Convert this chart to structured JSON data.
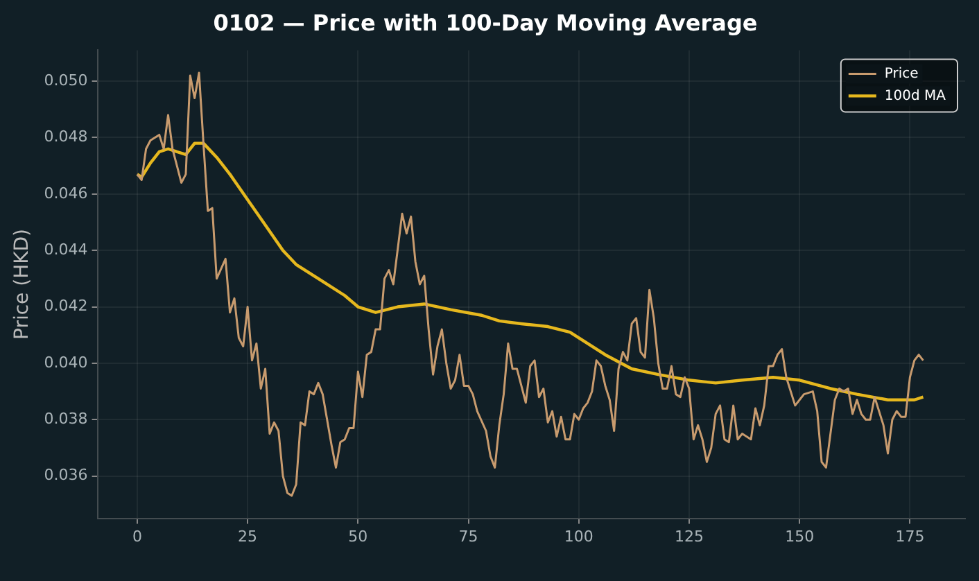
{
  "chart_data": {
    "type": "line",
    "title": "0102 — Price with 100-Day Moving Average",
    "ylabel": "Price (HKD)",
    "xlim": [
      -9,
      187.5
    ],
    "xticks": [
      0,
      25,
      50,
      75,
      100,
      125,
      150,
      175
    ],
    "ylim": [
      0.0345,
      0.0511
    ],
    "yticks": [
      {
        "value": 0.036,
        "label": "0.036"
      },
      {
        "value": 0.038,
        "label": "0.038"
      },
      {
        "value": 0.04,
        "label": "0.040"
      },
      {
        "value": 0.042,
        "label": "0.042"
      },
      {
        "value": 0.044,
        "label": "0.044"
      },
      {
        "value": 0.046,
        "label": "0.046"
      },
      {
        "value": 0.048,
        "label": "0.048"
      },
      {
        "value": 0.05,
        "label": "0.050"
      }
    ],
    "grid": true,
    "legend": "top right",
    "marker": "none",
    "line_style": "solid",
    "series": [
      {
        "name": "Price",
        "color": "#c89b6e",
        "x": [
          0,
          1,
          2,
          3,
          5,
          6,
          7,
          8,
          10,
          11,
          12,
          13,
          14,
          15,
          16,
          17,
          18,
          20,
          21,
          22,
          23,
          24,
          25,
          26,
          27,
          28,
          29,
          30,
          31,
          32,
          33,
          34,
          35,
          36,
          37,
          38,
          39,
          40,
          41,
          42,
          44,
          45,
          46,
          47,
          48,
          49,
          50,
          51,
          52,
          53,
          54,
          55,
          56,
          57,
          58,
          60,
          61,
          62,
          63,
          64,
          65,
          66,
          67,
          68,
          69,
          70,
          71,
          72,
          73,
          74,
          75,
          76,
          77,
          79,
          80,
          81,
          82,
          83,
          84,
          85,
          86,
          87,
          88,
          89,
          90,
          91,
          92,
          93,
          94,
          95,
          96,
          97,
          98,
          99,
          100,
          101,
          102,
          103,
          104,
          105,
          106,
          107,
          108,
          109,
          110,
          111,
          112,
          113,
          114,
          115,
          116,
          117,
          118,
          119,
          120,
          121,
          122,
          123,
          124,
          125,
          126,
          127,
          128,
          129,
          130,
          131,
          132,
          133,
          134,
          135,
          136,
          137,
          139,
          140,
          141,
          142,
          143,
          144,
          145,
          146,
          147,
          149,
          150,
          151,
          153,
          154,
          155,
          156,
          157,
          158,
          159,
          160,
          161,
          162,
          163,
          164,
          165,
          166,
          167,
          168,
          169,
          170,
          171,
          172,
          173,
          174,
          175,
          176,
          177,
          178
        ],
        "values": [
          0.0467,
          0.0465,
          0.0476,
          0.0479,
          0.0481,
          0.0476,
          0.0488,
          0.0476,
          0.0464,
          0.0467,
          0.0502,
          0.0494,
          0.0503,
          0.0478,
          0.0454,
          0.0455,
          0.043,
          0.0437,
          0.0418,
          0.0423,
          0.0409,
          0.0406,
          0.042,
          0.0401,
          0.0407,
          0.0391,
          0.0398,
          0.0375,
          0.0379,
          0.0376,
          0.036,
          0.0354,
          0.0353,
          0.0357,
          0.0379,
          0.0378,
          0.039,
          0.0389,
          0.0393,
          0.0389,
          0.0371,
          0.0363,
          0.0372,
          0.0373,
          0.0377,
          0.0377,
          0.0397,
          0.0388,
          0.0403,
          0.0404,
          0.0412,
          0.0412,
          0.043,
          0.0433,
          0.0428,
          0.0453,
          0.0446,
          0.0452,
          0.0436,
          0.0428,
          0.0431,
          0.0412,
          0.0396,
          0.0406,
          0.0412,
          0.04,
          0.0391,
          0.0394,
          0.0403,
          0.0392,
          0.0392,
          0.0389,
          0.0383,
          0.0376,
          0.0367,
          0.0363,
          0.0378,
          0.0389,
          0.0407,
          0.0398,
          0.0398,
          0.0392,
          0.0386,
          0.0399,
          0.0401,
          0.0388,
          0.0391,
          0.0379,
          0.0383,
          0.0374,
          0.0381,
          0.0373,
          0.0373,
          0.0382,
          0.038,
          0.0384,
          0.0386,
          0.039,
          0.0401,
          0.0399,
          0.0392,
          0.0387,
          0.0376,
          0.0398,
          0.0404,
          0.0401,
          0.0414,
          0.0416,
          0.0404,
          0.0402,
          0.0426,
          0.0416,
          0.04,
          0.0391,
          0.0391,
          0.0399,
          0.0389,
          0.0388,
          0.0395,
          0.0391,
          0.0373,
          0.0378,
          0.0373,
          0.0365,
          0.037,
          0.0382,
          0.0385,
          0.0373,
          0.0372,
          0.0385,
          0.0373,
          0.0375,
          0.0373,
          0.0384,
          0.0378,
          0.0385,
          0.0399,
          0.0399,
          0.0403,
          0.0405,
          0.0395,
          0.0385,
          0.0387,
          0.0389,
          0.039,
          0.0383,
          0.0365,
          0.0363,
          0.0375,
          0.0387,
          0.0391,
          0.039,
          0.0391,
          0.0382,
          0.0387,
          0.0382,
          0.038,
          0.038,
          0.0388,
          0.0383,
          0.0378,
          0.0368,
          0.038,
          0.0383,
          0.0381,
          0.0381,
          0.0395,
          0.0401,
          0.0403,
          0.0401
        ]
      },
      {
        "name": "100d MA",
        "color": "#e6b81e",
        "x": [
          0,
          1,
          3,
          5,
          7,
          11,
          13,
          15,
          18,
          21,
          25,
          29,
          33,
          36,
          42,
          47,
          50,
          54,
          59,
          65,
          71,
          78,
          82,
          87,
          93,
          98,
          106,
          112,
          118,
          125,
          131,
          137,
          144,
          150,
          157,
          163,
          170,
          176,
          178
        ],
        "values": [
          0.0467,
          0.0466,
          0.0471,
          0.0475,
          0.0476,
          0.0474,
          0.0478,
          0.0478,
          0.0473,
          0.0467,
          0.0458,
          0.0449,
          0.044,
          0.0435,
          0.0429,
          0.0424,
          0.042,
          0.0418,
          0.042,
          0.0421,
          0.0419,
          0.0417,
          0.0415,
          0.0414,
          0.0413,
          0.0411,
          0.0403,
          0.0398,
          0.0396,
          0.0394,
          0.0393,
          0.0394,
          0.0395,
          0.0394,
          0.0391,
          0.0389,
          0.0387,
          0.0387,
          0.0388
        ]
      }
    ]
  }
}
